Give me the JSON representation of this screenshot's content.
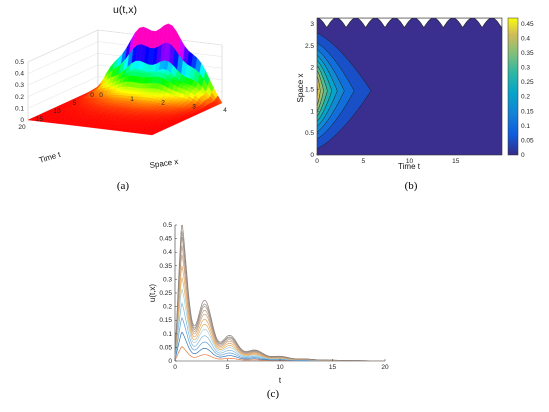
{
  "chart_data": [
    {
      "type": "surface",
      "panel": "(a)",
      "title": "u(t,x)",
      "xlabel": "Space x",
      "ylabel": "Time t",
      "zlabel": "",
      "x_ticks": [
        "0",
        "1",
        "2",
        "3",
        "4"
      ],
      "y_ticks": [
        "0",
        "5",
        "10",
        "15",
        "20"
      ],
      "z_ticks": [
        "0",
        "0.1",
        "0.2",
        "0.3",
        "0.4",
        "0.5"
      ],
      "xlim": [
        0,
        4
      ],
      "ylim": [
        0,
        20
      ],
      "zlim": [
        0,
        0.5
      ],
      "peak_value": 0.48,
      "colormap": "hsv"
    },
    {
      "type": "contour",
      "panel": "(b)",
      "title": "",
      "xlabel": "Time t",
      "ylabel": "Space x",
      "x_ticks": [
        "0",
        "5",
        "10",
        "15"
      ],
      "y_ticks": [
        "0",
        "0.5",
        "1",
        "1.5",
        "2",
        "2.5",
        "3"
      ],
      "colorbar_ticks": [
        "0",
        "0.05",
        "0.1",
        "0.15",
        "0.2",
        "0.25",
        "0.3",
        "0.35",
        "0.4",
        "0.45"
      ],
      "xlim": [
        0,
        20
      ],
      "ylim": [
        0,
        3.14
      ],
      "levels": [
        0.05,
        0.1,
        0.15,
        0.2,
        0.25,
        0.3,
        0.35,
        0.4,
        0.45
      ],
      "colormap": "parula"
    },
    {
      "type": "line",
      "panel": "(c)",
      "title": "",
      "xlabel": "t",
      "ylabel": "u(t,x)",
      "x_ticks": [
        "0",
        "5",
        "10",
        "15",
        "20"
      ],
      "y_ticks": [
        "0",
        "0.05",
        "0.1",
        "0.15",
        "0.2",
        "0.25",
        "0.3",
        "0.35",
        "0.4",
        "0.45",
        "0.5"
      ],
      "xlim": [
        0,
        20
      ],
      "ylim": [
        0,
        0.5
      ],
      "n_series": 12,
      "series_amplitudes": [
        0.05,
        0.1,
        0.15,
        0.2,
        0.25,
        0.29,
        0.33,
        0.37,
        0.4,
        0.43,
        0.45,
        0.48
      ],
      "series_colors": [
        "#e3793b",
        "#2f73b8",
        "#5fa0d6",
        "#7fb7d8",
        "#a6cfe0",
        "#d9b15a",
        "#e8a05a",
        "#c9a07a",
        "#b89c86",
        "#a89a8e",
        "#998f88",
        "#8b7f78"
      ]
    }
  ],
  "captions": {
    "a": "(a)",
    "b": "(b)",
    "c": "(c)"
  }
}
